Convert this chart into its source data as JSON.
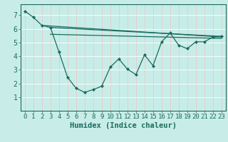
{
  "xlabel": "Humidex (Indice chaleur)",
  "bg_color": "#c8ede8",
  "line_color": "#1a6b5e",
  "grid_color": "#f0f0f0",
  "grid_color2": "#e8d8d8",
  "xlim": [
    -0.5,
    23.5
  ],
  "ylim": [
    0,
    7.8
  ],
  "yticks": [
    1,
    2,
    3,
    4,
    5,
    6,
    7
  ],
  "xticks": [
    0,
    1,
    2,
    3,
    4,
    5,
    6,
    7,
    8,
    9,
    10,
    11,
    12,
    13,
    14,
    15,
    16,
    17,
    18,
    19,
    20,
    21,
    22,
    23
  ],
  "main_x": [
    0,
    1,
    2,
    3,
    4,
    5,
    6,
    7,
    8,
    9,
    10,
    11,
    12,
    13,
    14,
    15,
    16,
    17,
    18,
    19,
    20,
    21,
    22,
    23
  ],
  "main_y": [
    7.3,
    6.85,
    6.25,
    6.1,
    4.3,
    2.45,
    1.65,
    1.35,
    1.55,
    1.8,
    3.2,
    3.8,
    3.05,
    2.65,
    4.1,
    3.3,
    5.05,
    5.7,
    4.8,
    4.55,
    5.05,
    5.05,
    5.4,
    5.45
  ],
  "trend1_x": [
    2,
    23
  ],
  "trend1_y": [
    6.25,
    5.4
  ],
  "trend2_x": [
    3,
    23
  ],
  "trend2_y": [
    6.1,
    5.45
  ],
  "trend3_x": [
    3,
    23
  ],
  "trend3_y": [
    5.6,
    5.3
  ],
  "tick_fontsize": 6.5,
  "xlabel_fontsize": 7.5
}
